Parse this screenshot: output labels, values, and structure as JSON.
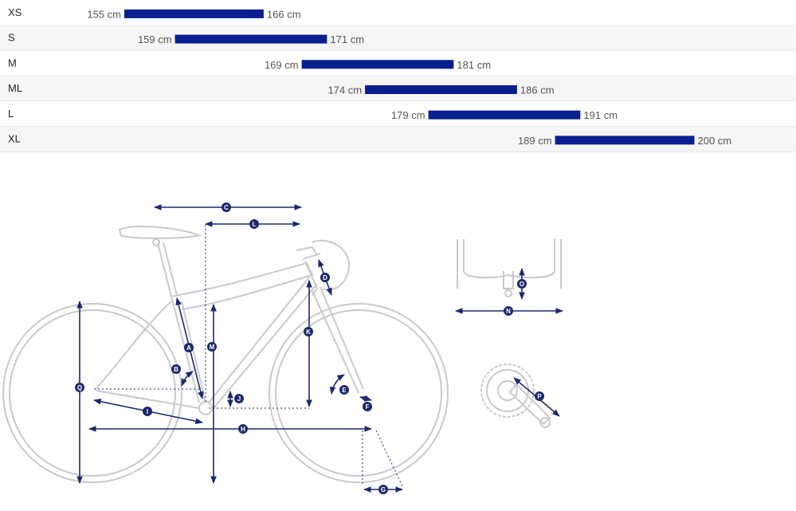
{
  "chart_data": {
    "type": "bar",
    "orientation": "horizontal-range",
    "unit": "cm",
    "xlim": [
      140,
      205
    ],
    "bar_color": "#0a1f8f",
    "rows": [
      {
        "size": "XS",
        "min": 155,
        "max": 166,
        "min_label": "155 cm",
        "max_label": "166 cm"
      },
      {
        "size": "S",
        "min": 159,
        "max": 171,
        "min_label": "159 cm",
        "max_label": "171 cm"
      },
      {
        "size": "M",
        "min": 169,
        "max": 181,
        "min_label": "169 cm",
        "max_label": "181 cm"
      },
      {
        "size": "ML",
        "min": 174,
        "max": 186,
        "min_label": "174 cm",
        "max_label": "186 cm"
      },
      {
        "size": "L",
        "min": 179,
        "max": 191,
        "min_label": "179 cm",
        "max_label": "191 cm"
      },
      {
        "size": "XL",
        "min": 189,
        "max": 200,
        "min_label": "189 cm",
        "max_label": "200 cm"
      }
    ]
  },
  "diagram": {
    "line_color": "#c9c9cf",
    "marker_color": "#1c2a6b",
    "labels": {
      "A": "A",
      "B": "B",
      "C": "C",
      "D": "D",
      "E": "E",
      "F": "F",
      "G": "G",
      "H": "H",
      "I": "I",
      "J": "J",
      "K": "K",
      "L": "L",
      "M": "M",
      "N": "N",
      "O": "O",
      "P": "P",
      "Q": "Q"
    }
  }
}
